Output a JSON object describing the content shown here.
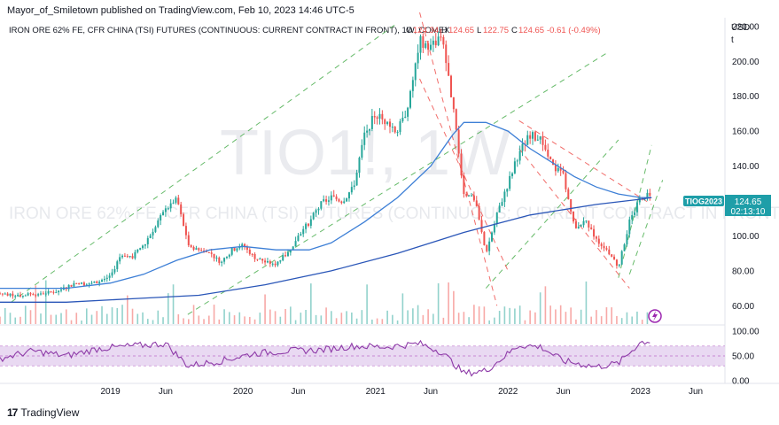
{
  "header": {
    "publisher_line": "Mayor_of_Smiletown published on TradingView.com, Feb 10, 2023 14:46 UTC-5"
  },
  "legend": {
    "symbol_line": "IRON ORE 62% FE, CFR CHINA (TSI) FUTURES (CONTINUOUS: CURRENT CONTRACT IN FRONT), 1W, COMEX",
    "ohlc": {
      "o_label": "O",
      "o": "124.34",
      "h_label": "H",
      "h": "124.65",
      "l_label": "L",
      "l": "122.75",
      "c_label": "C",
      "c": "124.65",
      "change": "-0.61 (-0.49%)"
    }
  },
  "watermark": {
    "symbol": "TIO1!, 1W",
    "description": "IRON ORE 62% FE, CFR CHINA (TSI) FUTURES (CONTINUOUS: CURRENT CONTRACT IN FRONT)"
  },
  "price_axis": {
    "currency": "USD",
    "currency_sub": "t",
    "ticks": [
      "220.00",
      "200.00",
      "180.00",
      "160.00",
      "140.00",
      "120.00",
      "100.00",
      "80.00",
      "60.00"
    ]
  },
  "rsi_axis": {
    "ticks": [
      "100.00",
      "50.00",
      "0.00"
    ]
  },
  "time_axis": {
    "ticks": [
      "2019",
      "Jun",
      "2020",
      "Jun",
      "2021",
      "Jun",
      "2022",
      "Jun",
      "2023",
      "Jun"
    ]
  },
  "price_tag": {
    "symbol": "TIOG2023",
    "price": "124.65",
    "countdown": "02:13:10"
  },
  "footer": {
    "brand": "TradingView",
    "mark": "17"
  },
  "colors": {
    "up": "#26a69a",
    "down": "#ef5350",
    "ma_fast": "#3d7fd6",
    "ma_slow": "#2a56b8",
    "trend_green": "#4caf50",
    "trend_red": "#ef5350",
    "rsi_line": "#8e3ba8",
    "rsi_band": "#e9d9f2",
    "tag_bg": "#1e9ea8"
  },
  "chart_data": {
    "type": "candlestick",
    "title": "IRON ORE 62% FE, CFR CHINA (TSI) FUTURES (CONTINUOUS: CURRENT CONTRACT IN FRONT), 1W, COMEX",
    "ylim": [
      50,
      225
    ],
    "x_range": [
      "2018-03",
      "2023-08"
    ],
    "last": {
      "open": 124.34,
      "high": 124.65,
      "low": 122.75,
      "close": 124.65,
      "change": -0.61,
      "change_pct": -0.49
    },
    "price_path": [
      [
        "2018-03",
        67
      ],
      [
        "2018-05",
        66
      ],
      [
        "2018-08",
        68
      ],
      [
        "2018-10",
        73
      ],
      [
        "2018-11",
        72
      ],
      [
        "2018-12",
        74
      ],
      [
        "2019-01",
        77
      ],
      [
        "2019-02",
        90
      ],
      [
        "2019-03",
        88
      ],
      [
        "2019-04",
        95
      ],
      [
        "2019-05",
        105
      ],
      [
        "2019-06",
        115
      ],
      [
        "2019-07",
        122
      ],
      [
        "2019-08",
        95
      ],
      [
        "2019-09",
        92
      ],
      [
        "2019-10",
        90
      ],
      [
        "2019-11",
        85
      ],
      [
        "2019-12",
        92
      ],
      [
        "2020-01",
        95
      ],
      [
        "2020-02",
        88
      ],
      [
        "2020-03",
        85
      ],
      [
        "2020-04",
        84
      ],
      [
        "2020-05",
        90
      ],
      [
        "2020-06",
        100
      ],
      [
        "2020-07",
        108
      ],
      [
        "2020-08",
        118
      ],
      [
        "2020-09",
        122
      ],
      [
        "2020-10",
        120
      ],
      [
        "2020-11",
        128
      ],
      [
        "2020-12",
        158
      ],
      [
        "2021-01",
        170
      ],
      [
        "2021-02",
        165
      ],
      [
        "2021-03",
        160
      ],
      [
        "2021-04",
        175
      ],
      [
        "2021-05",
        212
      ],
      [
        "2021-06",
        208
      ],
      [
        "2021-07",
        215
      ],
      [
        "2021-08",
        175
      ],
      [
        "2021-09",
        125
      ],
      [
        "2021-10",
        120
      ],
      [
        "2021-11",
        90
      ],
      [
        "2021-12",
        112
      ],
      [
        "2022-01",
        130
      ],
      [
        "2022-02",
        148
      ],
      [
        "2022-03",
        158
      ],
      [
        "2022-04",
        155
      ],
      [
        "2022-05",
        140
      ],
      [
        "2022-06",
        135
      ],
      [
        "2022-07",
        105
      ],
      [
        "2022-08",
        108
      ],
      [
        "2022-09",
        98
      ],
      [
        "2022-10",
        92
      ],
      [
        "2022-11",
        82
      ],
      [
        "2022-12",
        108
      ],
      [
        "2023-01",
        122
      ],
      [
        "2023-02",
        124.65
      ]
    ],
    "moving_averages": [
      {
        "name": "",
        "points": [
          [
            "2018-03",
            70
          ],
          [
            "2018-09",
            70
          ],
          [
            "2019-01",
            73
          ],
          [
            "2019-04",
            78
          ],
          [
            "2019-07",
            86
          ],
          [
            "2019-10",
            92
          ],
          [
            "2020-01",
            94
          ],
          [
            "2020-04",
            92
          ],
          [
            "2020-07",
            92
          ],
          [
            "2020-09",
            96
          ],
          [
            "2020-12",
            108
          ],
          [
            "2021-03",
            122
          ],
          [
            "2021-06",
            140
          ],
          [
            "2021-08",
            158
          ],
          [
            "2021-09",
            165
          ],
          [
            "2021-11",
            165
          ],
          [
            "2022-01",
            160
          ],
          [
            "2022-03",
            150
          ],
          [
            "2022-05",
            142
          ],
          [
            "2022-07",
            134
          ],
          [
            "2022-09",
            128
          ],
          [
            "2022-11",
            124
          ],
          [
            "2023-01",
            122
          ],
          [
            "2023-02",
            122
          ]
        ]
      },
      {
        "name": "",
        "points": [
          [
            "2018-03",
            62
          ],
          [
            "2018-09",
            62
          ],
          [
            "2019-03",
            64
          ],
          [
            "2019-09",
            66
          ],
          [
            "2020-03",
            72
          ],
          [
            "2020-09",
            80
          ],
          [
            "2021-03",
            90
          ],
          [
            "2021-09",
            102
          ],
          [
            "2022-03",
            112
          ],
          [
            "2022-09",
            118
          ],
          [
            "2023-01",
            121
          ],
          [
            "2023-02",
            122
          ]
        ]
      }
    ],
    "rsi": {
      "band": [
        30,
        70
      ],
      "points": [
        [
          "2018-03",
          45
        ],
        [
          "2018-06",
          60
        ],
        [
          "2018-09",
          50
        ],
        [
          "2018-12",
          65
        ],
        [
          "2019-03",
          70
        ],
        [
          "2019-06",
          75
        ],
        [
          "2019-08",
          30
        ],
        [
          "2019-11",
          40
        ],
        [
          "2020-02",
          55
        ],
        [
          "2020-05",
          60
        ],
        [
          "2020-08",
          62
        ],
        [
          "2020-11",
          70
        ],
        [
          "2021-02",
          68
        ],
        [
          "2021-05",
          75
        ],
        [
          "2021-07",
          58
        ],
        [
          "2021-09",
          15
        ],
        [
          "2021-11",
          20
        ],
        [
          "2022-02",
          72
        ],
        [
          "2022-04",
          68
        ],
        [
          "2022-06",
          40
        ],
        [
          "2022-09",
          28
        ],
        [
          "2022-11",
          35
        ],
        [
          "2023-01",
          78
        ],
        [
          "2023-02",
          80
        ]
      ]
    }
  }
}
